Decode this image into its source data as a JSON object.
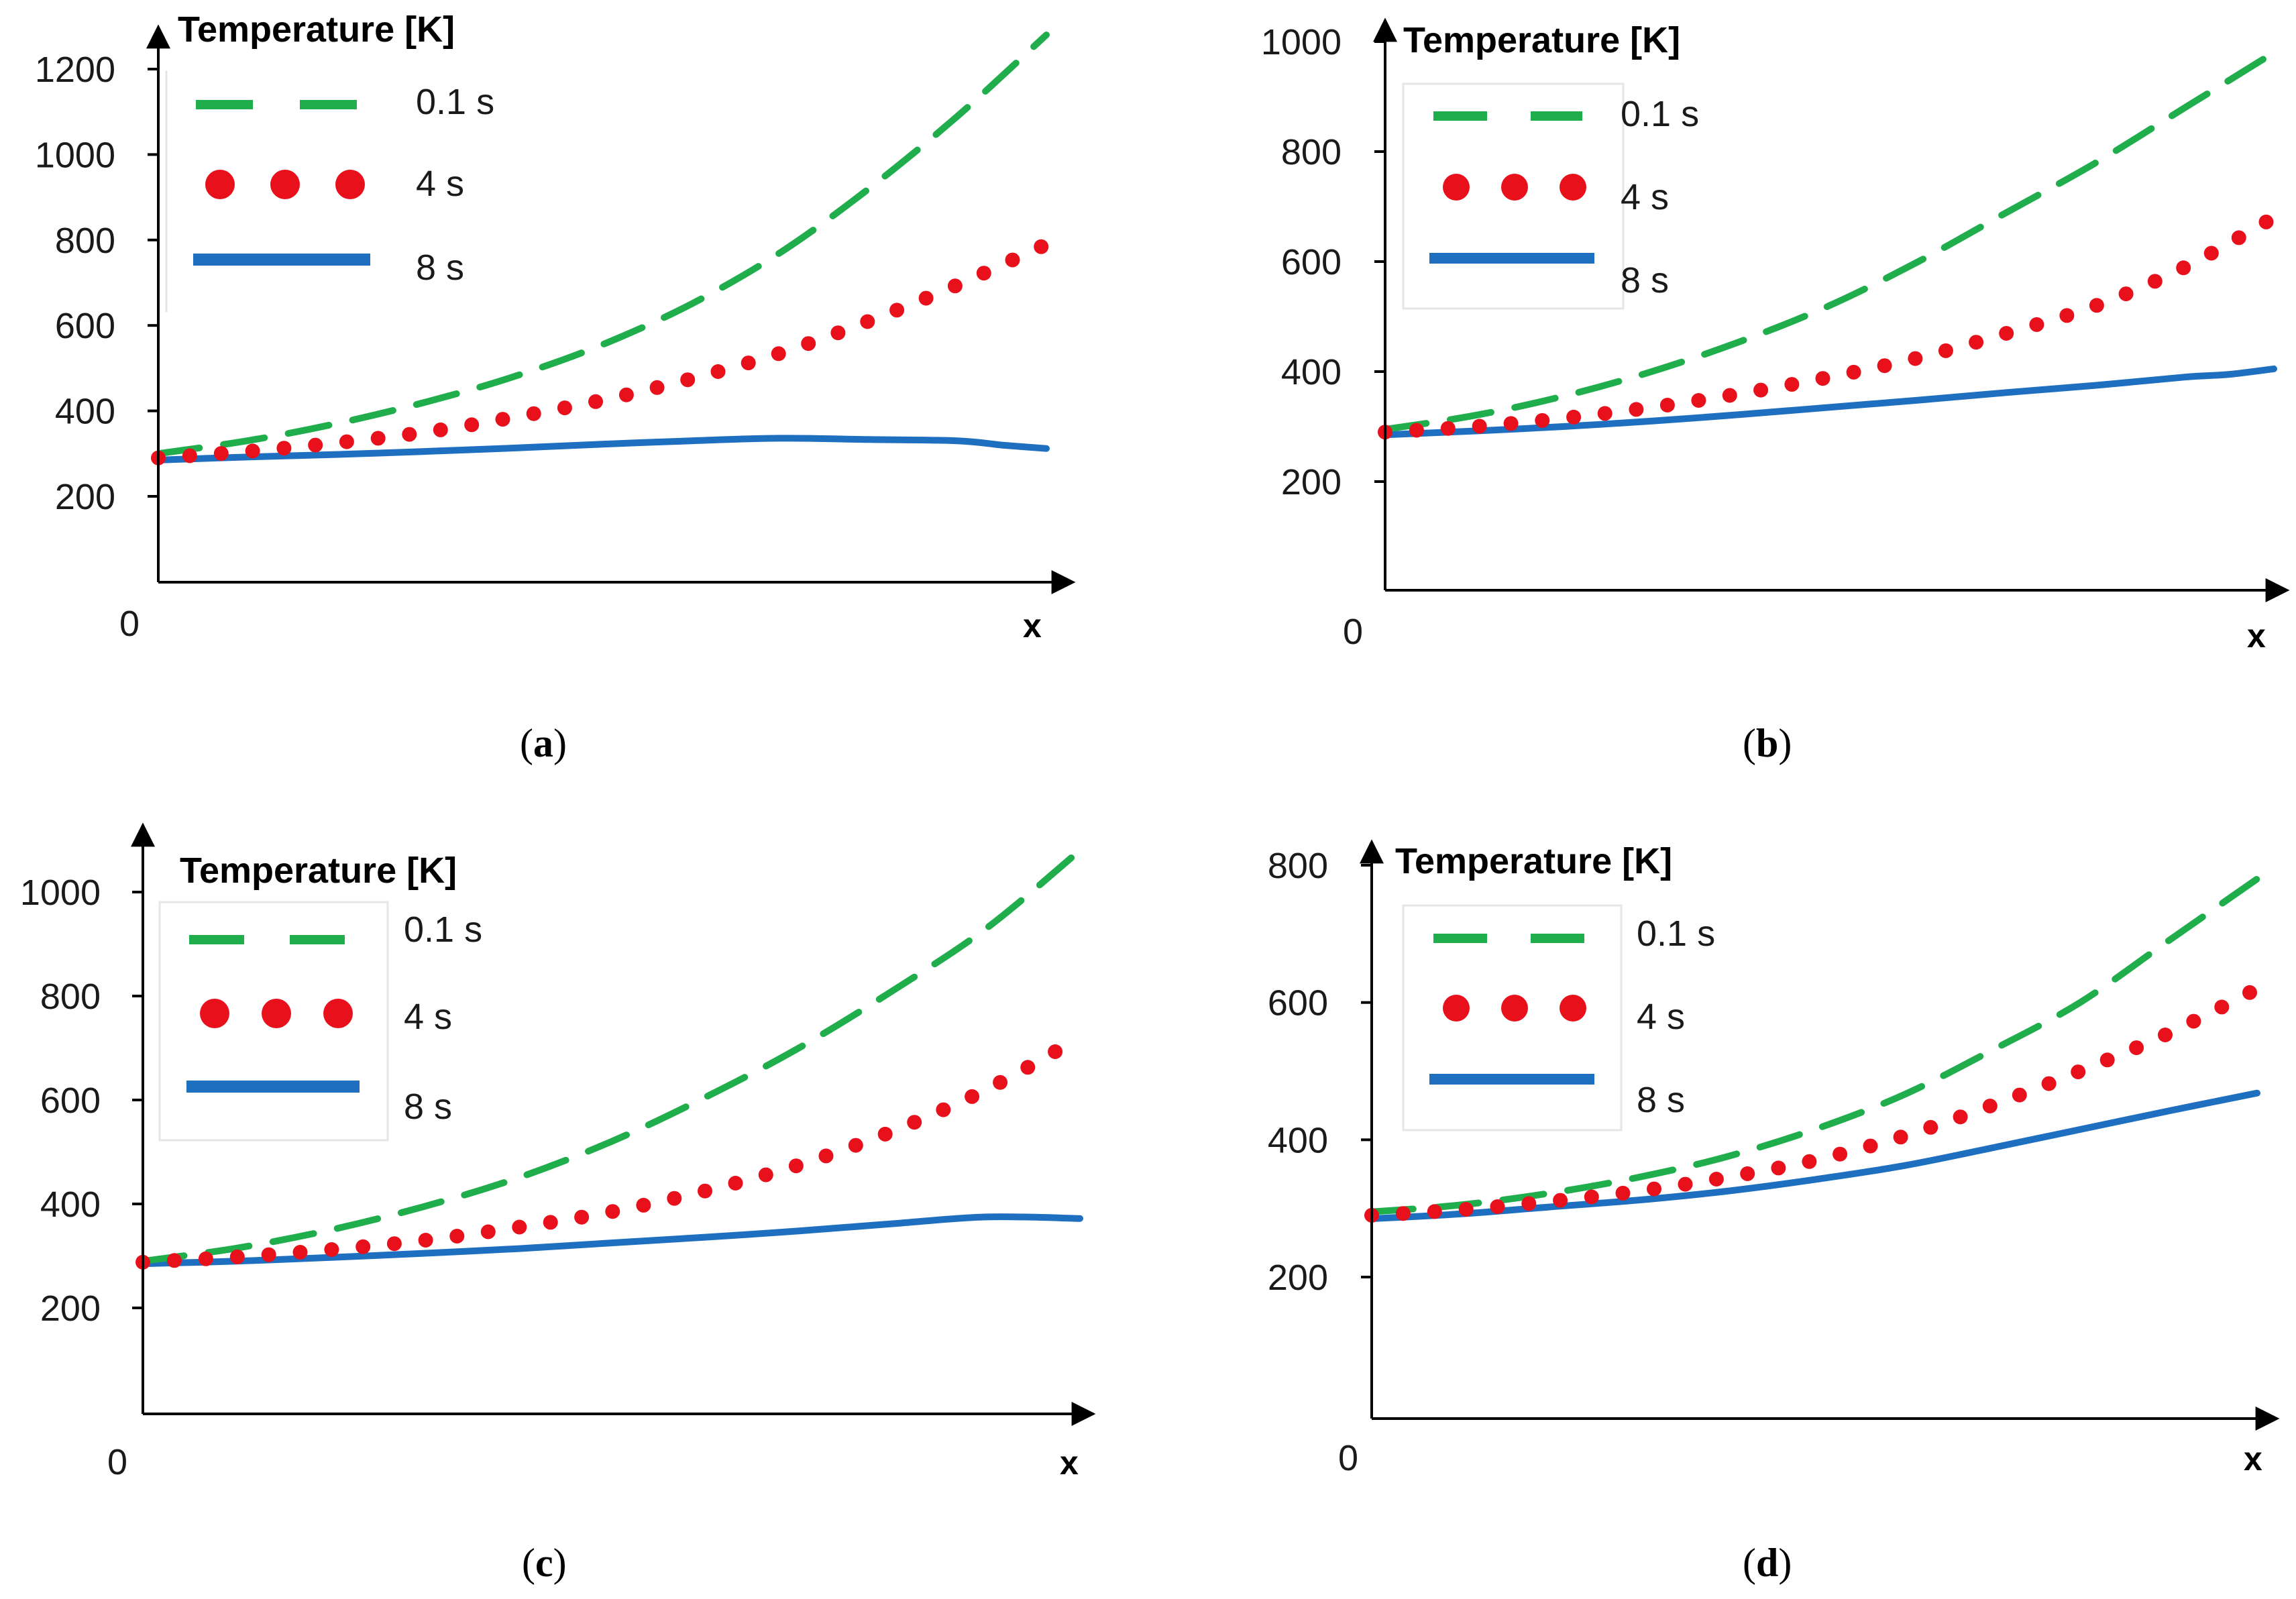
{
  "chart_data": [
    {
      "id": "a",
      "type": "line",
      "caption_letter": "a",
      "title": "Temperature [K]",
      "xlabel": "x",
      "origin_label": "0",
      "yticks": [
        200,
        400,
        600,
        800,
        1000,
        1200
      ],
      "ylim": [
        0,
        1300
      ],
      "xlim": [
        0,
        1
      ],
      "series": [
        {
          "name": "0.1 s",
          "style": "dashed",
          "color": "#1fae4b",
          "x": [
            0,
            0.1,
            0.2,
            0.3,
            0.4,
            0.5,
            0.6,
            0.7,
            0.8,
            0.9,
            1.0
          ],
          "y": [
            300,
            330,
            370,
            420,
            480,
            555,
            650,
            770,
            920,
            1090,
            1280
          ]
        },
        {
          "name": "4 s",
          "style": "dotted",
          "color": "#e8111b",
          "x": [
            0,
            0.1,
            0.2,
            0.3,
            0.4,
            0.5,
            0.6,
            0.7,
            0.8,
            0.9,
            1.0
          ],
          "y": [
            290,
            305,
            325,
            350,
            385,
            425,
            475,
            535,
            610,
            695,
            790
          ]
        },
        {
          "name": "8 s",
          "style": "solid",
          "color": "#1f6fc1",
          "x": [
            0,
            0.1,
            0.2,
            0.3,
            0.4,
            0.5,
            0.6,
            0.7,
            0.8,
            0.9,
            0.95,
            1.0
          ],
          "y": [
            285,
            292,
            298,
            305,
            313,
            322,
            330,
            336,
            333,
            330,
            320,
            312
          ]
        }
      ]
    },
    {
      "id": "b",
      "type": "line",
      "caption_letter": "b",
      "title": "Temperature [K]",
      "xlabel": "x",
      "origin_label": "0",
      "yticks": [
        200,
        400,
        600,
        800,
        1000
      ],
      "ylim": [
        0,
        1000
      ],
      "xlim": [
        0,
        1
      ],
      "series": [
        {
          "name": "0.1 s",
          "style": "dashed",
          "color": "#1fae4b",
          "x": [
            0,
            0.1,
            0.2,
            0.3,
            0.4,
            0.5,
            0.6,
            0.7,
            0.8,
            0.9,
            1.0
          ],
          "y": [
            295,
            320,
            355,
            400,
            455,
            520,
            600,
            690,
            780,
            880,
            980
          ]
        },
        {
          "name": "4 s",
          "style": "dotted",
          "color": "#e8111b",
          "x": [
            0,
            0.1,
            0.2,
            0.3,
            0.4,
            0.5,
            0.6,
            0.7,
            0.8,
            0.9,
            1.0
          ],
          "y": [
            290,
            300,
            315,
            335,
            360,
            390,
            425,
            470,
            520,
            590,
            680
          ]
        },
        {
          "name": "8 s",
          "style": "solid",
          "color": "#1f6fc1",
          "x": [
            0,
            0.1,
            0.2,
            0.3,
            0.4,
            0.5,
            0.6,
            0.7,
            0.8,
            0.9,
            0.95,
            1.0
          ],
          "y": [
            285,
            292,
            300,
            310,
            322,
            335,
            348,
            362,
            375,
            390,
            395,
            405
          ]
        }
      ]
    },
    {
      "id": "c",
      "type": "line",
      "caption_letter": "c",
      "title": "Temperature [K]",
      "xlabel": "x",
      "origin_label": "0",
      "yticks": [
        200,
        400,
        600,
        800,
        1000
      ],
      "ylim": [
        0,
        1100
      ],
      "xlim": [
        0,
        1
      ],
      "series": [
        {
          "name": "0.1 s",
          "style": "dashed",
          "color": "#1fae4b",
          "x": [
            0,
            0.1,
            0.2,
            0.3,
            0.4,
            0.5,
            0.6,
            0.7,
            0.8,
            0.9,
            1.0
          ],
          "y": [
            290,
            315,
            350,
            395,
            450,
            520,
            605,
            700,
            810,
            930,
            1080
          ]
        },
        {
          "name": "4 s",
          "style": "dotted",
          "color": "#e8111b",
          "x": [
            0,
            0.1,
            0.2,
            0.3,
            0.4,
            0.5,
            0.6,
            0.7,
            0.8,
            0.9,
            1.0
          ],
          "y": [
            288,
            298,
            312,
            330,
            355,
            385,
            425,
            475,
            540,
            620,
            720
          ]
        },
        {
          "name": "8 s",
          "style": "solid",
          "color": "#1f6fc1",
          "x": [
            0,
            0.1,
            0.2,
            0.3,
            0.4,
            0.5,
            0.6,
            0.7,
            0.8,
            0.9,
            1.0
          ],
          "y": [
            285,
            290,
            297,
            305,
            314,
            325,
            336,
            348,
            362,
            375,
            372
          ]
        }
      ]
    },
    {
      "id": "d",
      "type": "line",
      "caption_letter": "d",
      "title": "Temperature [K]",
      "xlabel": "x",
      "origin_label": "0",
      "yticks": [
        200,
        400,
        600,
        800
      ],
      "ylim": [
        0,
        820
      ],
      "xlim": [
        0,
        1
      ],
      "series": [
        {
          "name": "0.1 s",
          "style": "dashed",
          "color": "#1fae4b",
          "x": [
            0,
            0.1,
            0.2,
            0.3,
            0.4,
            0.5,
            0.6,
            0.7,
            0.8,
            0.9,
            1.0
          ],
          "y": [
            295,
            305,
            322,
            345,
            375,
            415,
            465,
            530,
            600,
            690,
            780
          ]
        },
        {
          "name": "4 s",
          "style": "dotted",
          "color": "#e8111b",
          "x": [
            0,
            0.1,
            0.2,
            0.3,
            0.4,
            0.5,
            0.6,
            0.7,
            0.8,
            0.9,
            1.0
          ],
          "y": [
            290,
            298,
            310,
            325,
            345,
            370,
            405,
            450,
            500,
            555,
            620
          ]
        },
        {
          "name": "8 s",
          "style": "solid",
          "color": "#1f6fc1",
          "x": [
            0,
            0.1,
            0.2,
            0.3,
            0.4,
            0.5,
            0.6,
            0.7,
            0.8,
            0.9,
            1.0
          ],
          "y": [
            285,
            292,
            302,
            312,
            325,
            342,
            362,
            388,
            415,
            442,
            468
          ]
        }
      ]
    }
  ]
}
